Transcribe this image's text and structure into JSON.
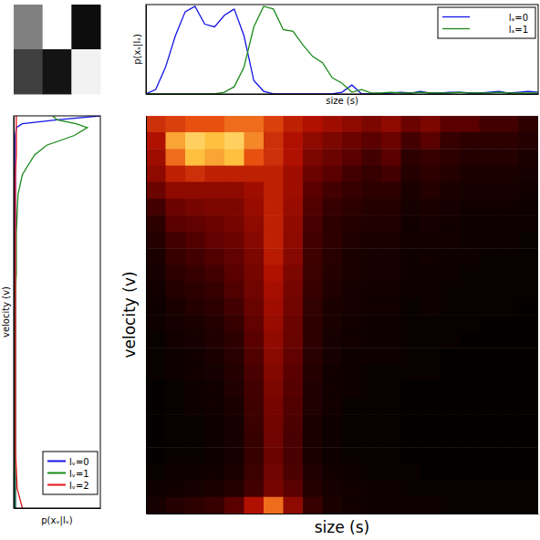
{
  "chart_data": [
    {
      "type": "image",
      "tick_labels": false,
      "zlim": [
        0,
        1
      ],
      "values": [
        [
          0.5,
          1,
          0.05
        ],
        [
          0.25,
          0.08,
          0.95
        ]
      ]
    },
    {
      "type": "line",
      "x_label": "size (s)",
      "y_label": "p(xₛ|lₛ)",
      "xlim": [
        0,
        1
      ],
      "ylim": [
        0,
        1
      ],
      "tick_labels": false,
      "legend": "upper right",
      "x": [
        0,
        0.025,
        0.05,
        0.075,
        0.1,
        0.125,
        0.15,
        0.175,
        0.2,
        0.225,
        0.25,
        0.275,
        0.3,
        0.325,
        0.35,
        0.375,
        0.4,
        0.425,
        0.45,
        0.475,
        0.5,
        0.525,
        0.55,
        0.575,
        0.6,
        0.625,
        0.65,
        0.675,
        0.7,
        0.725,
        0.75,
        0.775,
        0.8,
        0.825,
        0.85,
        0.875,
        0.9,
        0.925,
        0.95,
        0.975,
        1
      ],
      "series": [
        {
          "name": "lₛ=0",
          "color": "#1414e6",
          "values": [
            0,
            0.05,
            0.3,
            0.65,
            0.92,
            0.98,
            0.78,
            0.75,
            0.88,
            0.95,
            0.65,
            0.15,
            0.03,
            0,
            0,
            0,
            0,
            0,
            0,
            0,
            0.02,
            0.1,
            0,
            0,
            0,
            0.01,
            0.02,
            0.01,
            0.03,
            0.01,
            0.01,
            0.02,
            0.02,
            0.01,
            0.01,
            0.02,
            0.03,
            0.01,
            0.02,
            0.03,
            0.02
          ]
        },
        {
          "name": "lₛ=1",
          "color": "#1a8a1a",
          "values": [
            0,
            0,
            0,
            0,
            0,
            0,
            0,
            0,
            0.02,
            0.08,
            0.3,
            0.75,
            0.98,
            0.95,
            0.72,
            0.7,
            0.55,
            0.42,
            0.35,
            0.18,
            0.12,
            0.02,
            0.05,
            0.01,
            0.01,
            0.02,
            0.01,
            0.01,
            0.02,
            0.01,
            0.01,
            0.01,
            0.02,
            0.01,
            0.01,
            0.01,
            0.02,
            0.01,
            0.01,
            0.01,
            0.01
          ]
        }
      ]
    },
    {
      "type": "line",
      "orientation": "vertical",
      "x_label": "velocity (v)",
      "y_label": "p(xᵥ|lᵥ)",
      "xlim": [
        0,
        1
      ],
      "ylim": [
        0,
        1
      ],
      "tick_labels": false,
      "legend": "lower right",
      "x": [
        0,
        0.05,
        0.1,
        0.15,
        0.2,
        0.25,
        0.3,
        0.35,
        0.4,
        0.45,
        0.5,
        0.55,
        0.6,
        0.65,
        0.7,
        0.75,
        0.8,
        0.85,
        0.9,
        0.925,
        0.95,
        0.97,
        0.98,
        0.99,
        1
      ],
      "series": [
        {
          "name": "lᵥ=0",
          "color": "#1414e6",
          "values": [
            0.02,
            0.02,
            0.02,
            0.02,
            0.02,
            0.02,
            0.02,
            0.02,
            0.02,
            0.02,
            0.02,
            0.02,
            0.02,
            0.02,
            0.02,
            0.02,
            0.02,
            0.02,
            0.02,
            0.02,
            0.02,
            0.03,
            0.1,
            0.5,
            1
          ]
        },
        {
          "name": "lᵥ=1",
          "color": "#1a8a1a",
          "values": [
            0.02,
            0.02,
            0.02,
            0.02,
            0.02,
            0.02,
            0.02,
            0.02,
            0.02,
            0.02,
            0.02,
            0.02,
            0.03,
            0.03,
            0.03,
            0.04,
            0.05,
            0.1,
            0.24,
            0.38,
            0.7,
            0.85,
            0.72,
            0.5,
            0.45
          ]
        },
        {
          "name": "lᵥ=2",
          "color": "#e61414",
          "values": [
            0.1,
            0.04,
            0.03,
            0.02,
            0.02,
            0.02,
            0.02,
            0.02,
            0.02,
            0.02,
            0.02,
            0.02,
            0.02,
            0.02,
            0.02,
            0.02,
            0.02,
            0.02,
            0.03,
            0.03,
            0.03,
            0.03,
            0.03,
            0.03,
            0.03
          ]
        }
      ]
    },
    {
      "type": "heatmap",
      "x_label": "size (s)",
      "y_label": "velocity (v)",
      "xlim": [
        0,
        1
      ],
      "ylim": [
        0,
        1
      ],
      "zlim": [
        0,
        1
      ],
      "tick_labels": false,
      "x": [
        0.025,
        0.075,
        0.125,
        0.175,
        0.225,
        0.275,
        0.325,
        0.375,
        0.425,
        0.475,
        0.525,
        0.575,
        0.625,
        0.675,
        0.725,
        0.775,
        0.825,
        0.875,
        0.925,
        0.975
      ],
      "y": [
        0.979,
        0.938,
        0.896,
        0.854,
        0.813,
        0.771,
        0.729,
        0.688,
        0.646,
        0.604,
        0.563,
        0.521,
        0.479,
        0.438,
        0.396,
        0.354,
        0.313,
        0.271,
        0.229,
        0.188,
        0.146,
        0.104,
        0.063,
        0.021
      ],
      "values": [
        [
          0.55,
          0.6,
          0.65,
          0.65,
          0.7,
          0.7,
          0.6,
          0.5,
          0.45,
          0.4,
          0.35,
          0.3,
          0.35,
          0.25,
          0.3,
          0.2,
          0.2,
          0.15,
          0.15,
          0.1
        ],
        [
          0.45,
          0.8,
          0.9,
          0.85,
          0.9,
          0.75,
          0.55,
          0.45,
          0.35,
          0.3,
          0.25,
          0.2,
          0.25,
          0.15,
          0.2,
          0.12,
          0.1,
          0.1,
          0.1,
          0.08
        ],
        [
          0.4,
          0.7,
          0.85,
          0.8,
          0.85,
          0.65,
          0.55,
          0.45,
          0.3,
          0.25,
          0.2,
          0.15,
          0.2,
          0.1,
          0.12,
          0.1,
          0.08,
          0.08,
          0.08,
          0.06
        ],
        [
          0.35,
          0.5,
          0.55,
          0.5,
          0.5,
          0.5,
          0.5,
          0.4,
          0.25,
          0.2,
          0.15,
          0.12,
          0.15,
          0.08,
          0.1,
          0.08,
          0.06,
          0.06,
          0.06,
          0.05
        ],
        [
          0.25,
          0.35,
          0.35,
          0.35,
          0.35,
          0.4,
          0.5,
          0.4,
          0.2,
          0.15,
          0.12,
          0.1,
          0.1,
          0.06,
          0.08,
          0.06,
          0.05,
          0.05,
          0.05,
          0.04
        ],
        [
          0.15,
          0.25,
          0.28,
          0.3,
          0.3,
          0.38,
          0.5,
          0.38,
          0.18,
          0.12,
          0.1,
          0.08,
          0.08,
          0.05,
          0.06,
          0.05,
          0.04,
          0.04,
          0.04,
          0.03
        ],
        [
          0.1,
          0.2,
          0.22,
          0.25,
          0.28,
          0.35,
          0.5,
          0.36,
          0.16,
          0.1,
          0.08,
          0.07,
          0.07,
          0.04,
          0.05,
          0.04,
          0.03,
          0.03,
          0.03,
          0.03
        ],
        [
          0.08,
          0.15,
          0.18,
          0.22,
          0.25,
          0.33,
          0.5,
          0.35,
          0.15,
          0.1,
          0.07,
          0.06,
          0.06,
          0.04,
          0.04,
          0.04,
          0.03,
          0.03,
          0.03,
          0.02
        ],
        [
          0.06,
          0.12,
          0.15,
          0.18,
          0.22,
          0.3,
          0.48,
          0.33,
          0.14,
          0.09,
          0.06,
          0.05,
          0.05,
          0.03,
          0.04,
          0.03,
          0.03,
          0.02,
          0.02,
          0.02
        ],
        [
          0.05,
          0.1,
          0.12,
          0.15,
          0.2,
          0.28,
          0.45,
          0.3,
          0.13,
          0.08,
          0.06,
          0.05,
          0.05,
          0.03,
          0.03,
          0.03,
          0.02,
          0.02,
          0.02,
          0.02
        ],
        [
          0.04,
          0.08,
          0.1,
          0.12,
          0.18,
          0.26,
          0.42,
          0.28,
          0.12,
          0.07,
          0.05,
          0.04,
          0.04,
          0.03,
          0.03,
          0.02,
          0.02,
          0.02,
          0.02,
          0.02
        ],
        [
          0.03,
          0.06,
          0.08,
          0.1,
          0.15,
          0.24,
          0.4,
          0.27,
          0.11,
          0.06,
          0.05,
          0.04,
          0.04,
          0.02,
          0.03,
          0.02,
          0.02,
          0.02,
          0.02,
          0.01
        ],
        [
          0.03,
          0.05,
          0.06,
          0.08,
          0.12,
          0.22,
          0.38,
          0.25,
          0.1,
          0.06,
          0.04,
          0.03,
          0.03,
          0.02,
          0.02,
          0.02,
          0.02,
          0.01,
          0.01,
          0.01
        ],
        [
          0.02,
          0.04,
          0.05,
          0.07,
          0.1,
          0.2,
          0.36,
          0.24,
          0.1,
          0.05,
          0.04,
          0.03,
          0.03,
          0.02,
          0.02,
          0.02,
          0.01,
          0.01,
          0.01,
          0.01
        ],
        [
          0.02,
          0.03,
          0.04,
          0.06,
          0.09,
          0.18,
          0.34,
          0.22,
          0.09,
          0.05,
          0.03,
          0.03,
          0.03,
          0.02,
          0.02,
          0.01,
          0.01,
          0.01,
          0.01,
          0.01
        ],
        [
          0.02,
          0.03,
          0.04,
          0.05,
          0.08,
          0.16,
          0.32,
          0.2,
          0.08,
          0.04,
          0.03,
          0.02,
          0.02,
          0.02,
          0.02,
          0.01,
          0.01,
          0.01,
          0.01,
          0.01
        ],
        [
          0.01,
          0.02,
          0.03,
          0.04,
          0.07,
          0.15,
          0.3,
          0.19,
          0.07,
          0.04,
          0.03,
          0.02,
          0.02,
          0.01,
          0.01,
          0.01,
          0.01,
          0.01,
          0.01,
          0.01
        ],
        [
          0.01,
          0.02,
          0.03,
          0.04,
          0.06,
          0.14,
          0.28,
          0.18,
          0.07,
          0.04,
          0.02,
          0.02,
          0.02,
          0.01,
          0.01,
          0.01,
          0.01,
          0.01,
          0.01,
          0.01
        ],
        [
          0.01,
          0.02,
          0.02,
          0.03,
          0.05,
          0.13,
          0.27,
          0.17,
          0.06,
          0.03,
          0.02,
          0.02,
          0.02,
          0.01,
          0.01,
          0.01,
          0.01,
          0.01,
          0.01,
          0.01
        ],
        [
          0.01,
          0.02,
          0.02,
          0.03,
          0.05,
          0.12,
          0.26,
          0.16,
          0.06,
          0.03,
          0.02,
          0.02,
          0.02,
          0.01,
          0.01,
          0.01,
          0.01,
          0.01,
          0.01,
          0.01
        ],
        [
          0.01,
          0.02,
          0.02,
          0.03,
          0.05,
          0.12,
          0.25,
          0.16,
          0.06,
          0.03,
          0.02,
          0.02,
          0.02,
          0.01,
          0.01,
          0.01,
          0.01,
          0.01,
          0.01,
          0.01
        ],
        [
          0.02,
          0.03,
          0.03,
          0.04,
          0.06,
          0.13,
          0.26,
          0.17,
          0.07,
          0.04,
          0.03,
          0.02,
          0.02,
          0.02,
          0.01,
          0.01,
          0.01,
          0.01,
          0.01,
          0.01
        ],
        [
          0.03,
          0.04,
          0.05,
          0.06,
          0.08,
          0.15,
          0.28,
          0.2,
          0.08,
          0.05,
          0.04,
          0.03,
          0.03,
          0.02,
          0.02,
          0.02,
          0.02,
          0.02,
          0.02,
          0.02
        ],
        [
          0.05,
          0.08,
          0.1,
          0.12,
          0.2,
          0.45,
          0.7,
          0.35,
          0.12,
          0.06,
          0.04,
          0.03,
          0.03,
          0.03,
          0.03,
          0.02,
          0.02,
          0.02,
          0.02,
          0.02
        ]
      ]
    }
  ]
}
